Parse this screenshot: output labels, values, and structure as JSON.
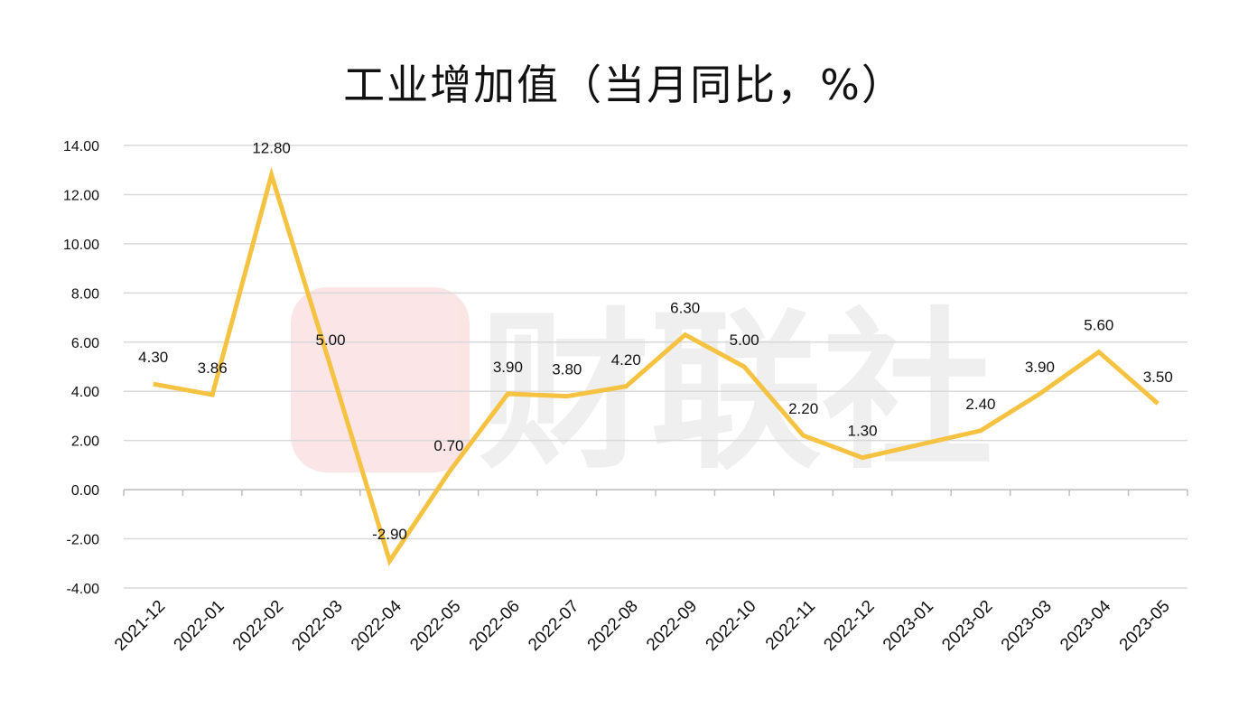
{
  "watermark": "财联社",
  "chart_data": {
    "type": "line",
    "title": "工业增加值（当月同比，%）",
    "xlabel": "",
    "ylabel": "",
    "ylim": [
      -4,
      14
    ],
    "yticks": [
      -4,
      -2,
      0,
      2,
      4,
      6,
      8,
      10,
      12,
      14
    ],
    "ytick_labels": [
      "-4.00",
      "-2.00",
      "0.00",
      "2.00",
      "4.00",
      "6.00",
      "8.00",
      "10.00",
      "12.00",
      "14.00"
    ],
    "grid": true,
    "legend": "none",
    "categories": [
      "2021-12",
      "2022-01",
      "2022-02",
      "2022-03",
      "2022-04",
      "2022-05",
      "2022-06",
      "2022-07",
      "2022-08",
      "2022-09",
      "2022-10",
      "2022-11",
      "2022-12",
      "2023-01",
      "2023-02",
      "2023-03",
      "2023-04",
      "2023-05"
    ],
    "series": [
      {
        "name": "工业增加值",
        "color": "#F5C242",
        "values": [
          4.3,
          3.86,
          12.8,
          5.0,
          -2.9,
          0.7,
          3.9,
          3.8,
          4.2,
          6.3,
          5.0,
          2.2,
          1.3,
          null,
          2.4,
          3.9,
          5.6,
          3.5
        ],
        "labels": [
          "4.30",
          "3.86",
          "12.80",
          "5.00",
          "-2.90",
          "0.70",
          "3.90",
          "3.80",
          "4.20",
          "6.30",
          "5.00",
          "2.20",
          "1.30",
          "",
          "2.40",
          "3.90",
          "5.60",
          "3.50"
        ]
      }
    ]
  }
}
